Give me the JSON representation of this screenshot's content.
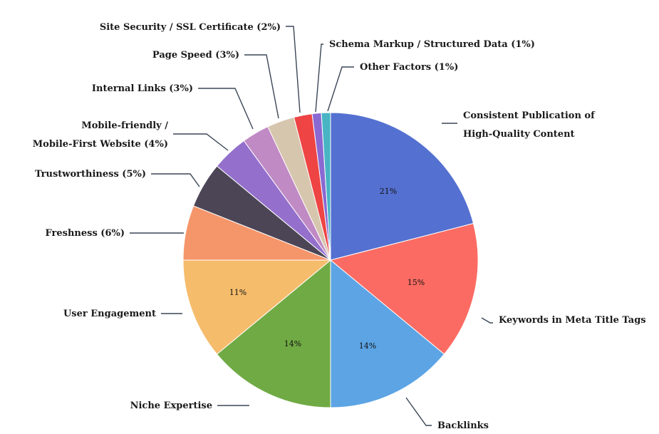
{
  "chart_data": {
    "type": "pie",
    "title": "",
    "slices": [
      {
        "label": "Consistent Publication of High-Quality Content",
        "label_lines": [
          "Consistent Publication of",
          "High-Quality Content"
        ],
        "value": 21,
        "pct_label": "21%",
        "color": "#5470d0"
      },
      {
        "label": "Keywords in Meta Title Tags",
        "label_lines": [
          "Keywords in Meta Title Tags"
        ],
        "value": 15,
        "pct_label": "15%",
        "color": "#fc6b63"
      },
      {
        "label": "Backlinks",
        "label_lines": [
          "Backlinks"
        ],
        "value": 14,
        "pct_label": "14%",
        "color": "#5ca4e4"
      },
      {
        "label": "Niche Expertise",
        "label_lines": [
          "Niche Expertise"
        ],
        "value": 14,
        "pct_label": "14%",
        "color": "#70aa44"
      },
      {
        "label": "User Engagement",
        "label_lines": [
          "User Engagement"
        ],
        "value": 11,
        "pct_label": "11%",
        "color": "#f5bc6c"
      },
      {
        "label": "Freshness (6%)",
        "label_lines": [
          "Freshness (6%)"
        ],
        "value": 6,
        "pct_label": "",
        "color": "#f5956a"
      },
      {
        "label": "Trustworthiness (5%)",
        "label_lines": [
          "Trustworthiness (5%)"
        ],
        "value": 5,
        "pct_label": "",
        "color": "#4b4556"
      },
      {
        "label": "Mobile-friendly / Mobile-First Website (4%)",
        "label_lines": [
          "Mobile-friendly /",
          "Mobile-First Website (4%)"
        ],
        "value": 4,
        "pct_label": "",
        "color": "#9470cc"
      },
      {
        "label": "Internal Links (3%)",
        "label_lines": [
          "Internal Links (3%)"
        ],
        "value": 3,
        "pct_label": "",
        "color": "#c08ac4"
      },
      {
        "label": "Page Speed (3%)",
        "label_lines": [
          "Page Speed (3%)"
        ],
        "value": 3,
        "pct_label": "",
        "color": "#d6c6ae"
      },
      {
        "label": "Site Security / SSL Certificate (2%)",
        "label_lines": [
          "Site Security / SSL Certificate (2%)"
        ],
        "value": 2,
        "pct_label": "",
        "color": "#ee4444"
      },
      {
        "label": "Schema Markup / Structured Data (1%)",
        "label_lines": [
          "Schema Markup / Structured Data (1%)"
        ],
        "value": 1,
        "pct_label": "",
        "color": "#8a6ad2"
      },
      {
        "label": "Other Factors (1%)",
        "label_lines": [
          "Other Factors (1%)"
        ],
        "value": 1,
        "pct_label": "",
        "color": "#48b4c4"
      }
    ]
  }
}
